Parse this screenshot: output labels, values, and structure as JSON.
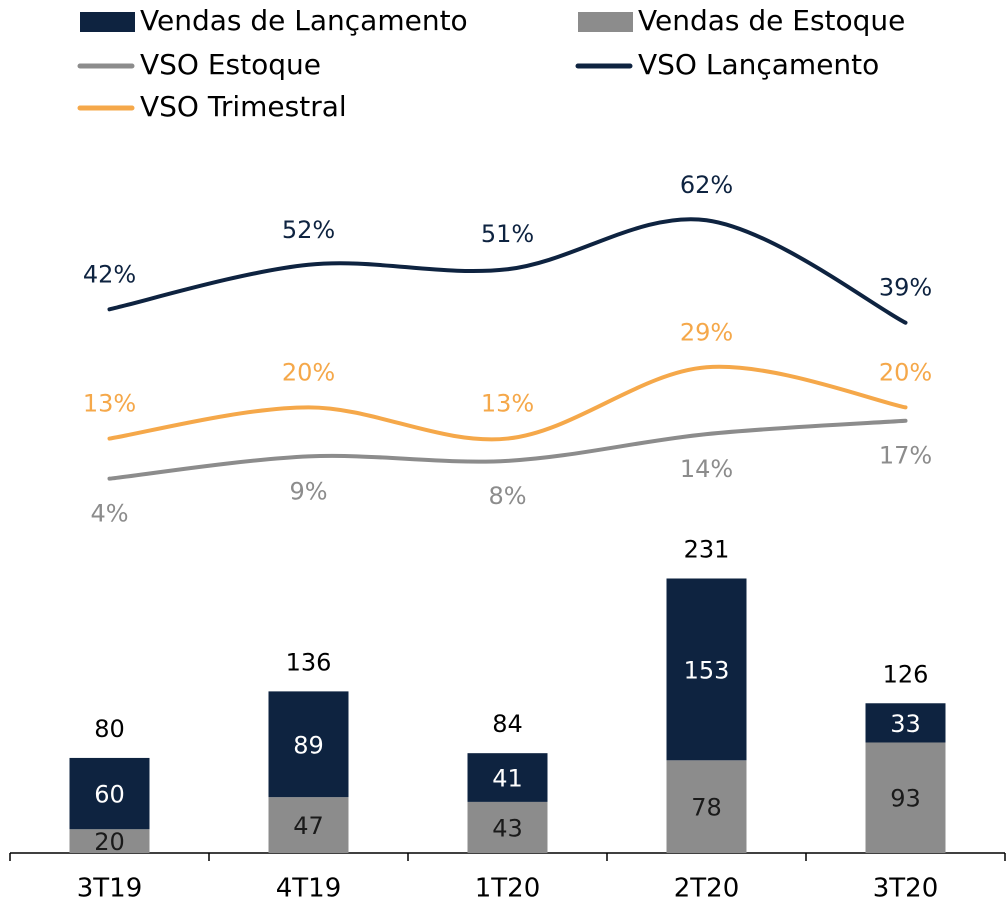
{
  "chart_data": {
    "type": "bar",
    "stacked": true,
    "categories": [
      "3T19",
      "4T19",
      "1T20",
      "2T20",
      "3T20"
    ],
    "series": [
      {
        "name": "Vendas de Lançamento",
        "type": "bar",
        "color": "#0e2340",
        "label_color": "#ffffff",
        "values": [
          60,
          89,
          41,
          153,
          33
        ]
      },
      {
        "name": "Vendas de Estoque",
        "type": "bar",
        "color": "#8c8c8c",
        "label_color": "#1a1a1a",
        "values": [
          20,
          47,
          43,
          78,
          93
        ]
      },
      {
        "name": "VSO Estoque",
        "type": "line",
        "axis": "y2",
        "color": "#8c8c8c",
        "values": [
          4,
          9,
          8,
          14,
          17
        ],
        "value_labels": [
          "4%",
          "9%",
          "8%",
          "14%",
          "17%"
        ],
        "label_position": "below"
      },
      {
        "name": "VSO Lançamento",
        "type": "line",
        "axis": "y2",
        "color": "#0e2340",
        "values": [
          42,
          52,
          51,
          62,
          39
        ],
        "value_labels": [
          "42%",
          "52%",
          "51%",
          "62%",
          "39%"
        ],
        "label_position": "above"
      },
      {
        "name": "VSO Trimestral",
        "type": "line",
        "axis": "y2",
        "color": "#f5a84a",
        "values": [
          13,
          20,
          13,
          29,
          20
        ],
        "value_labels": [
          "13%",
          "20%",
          "13%",
          "29%",
          "20%"
        ],
        "label_position": "above"
      }
    ],
    "totals": [
      80,
      136,
      84,
      231,
      126
    ],
    "ylim": [
      0,
      600
    ],
    "y2lim": [
      -80,
      80
    ],
    "legend": "top"
  }
}
